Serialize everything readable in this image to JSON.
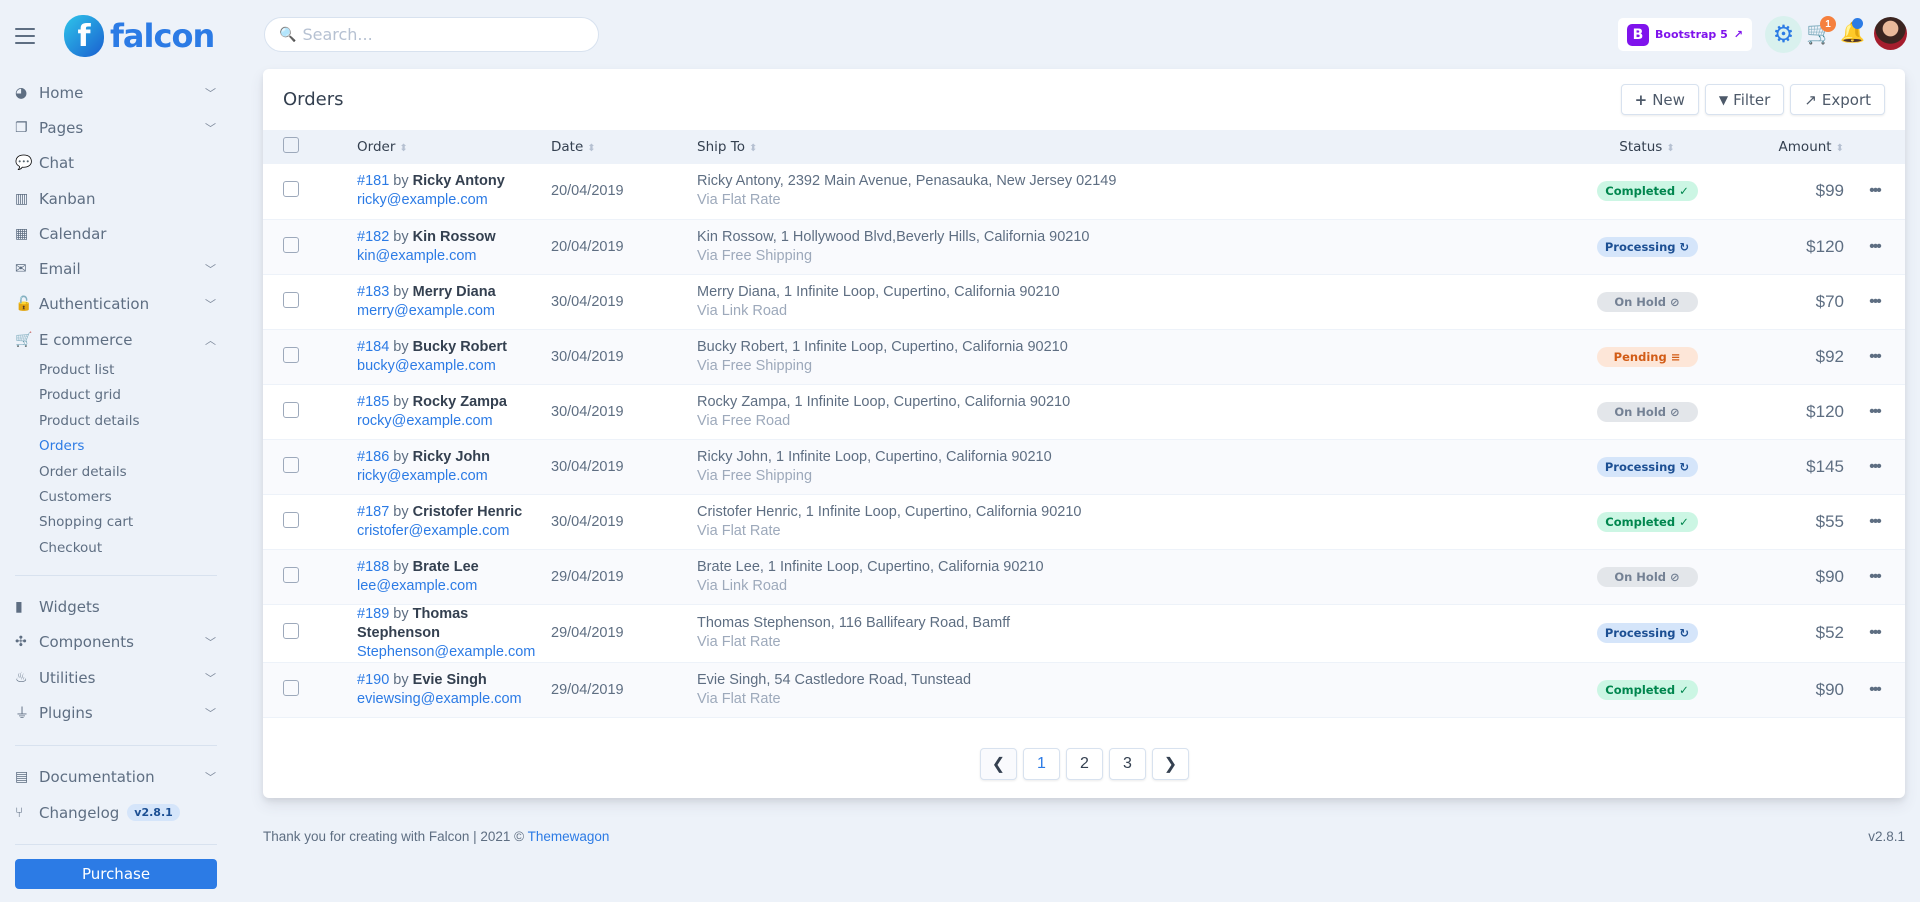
{
  "brand": {
    "name": "falcon",
    "mark": "f"
  },
  "search": {
    "placeholder": "Search..."
  },
  "topbar": {
    "bootstrap_label": "Bootstrap 5",
    "cart_count": "1"
  },
  "sidebar": {
    "items": [
      {
        "label": "Home",
        "icon": "pie-chart-icon",
        "chevron": true
      },
      {
        "label": "Pages",
        "icon": "copy-icon",
        "chevron": true
      },
      {
        "label": "Chat",
        "icon": "comments-icon",
        "chevron": false
      },
      {
        "label": "Kanban",
        "icon": "trello-icon",
        "chevron": false
      },
      {
        "label": "Calendar",
        "icon": "calendar-icon",
        "chevron": false
      },
      {
        "label": "Email",
        "icon": "envelope-open-icon",
        "chevron": true
      },
      {
        "label": "Authentication",
        "icon": "unlock-icon",
        "chevron": true
      },
      {
        "label": "E commerce",
        "icon": "cart-icon",
        "chevron": true,
        "expanded": true
      }
    ],
    "ecommerce_sub": [
      "Product list",
      "Product grid",
      "Product details",
      "Orders",
      "Order details",
      "Customers",
      "Shopping cart",
      "Checkout"
    ],
    "active_sub": "Orders",
    "items2": [
      {
        "label": "Widgets",
        "icon": "poll-icon",
        "chevron": false
      },
      {
        "label": "Components",
        "icon": "puzzle-icon",
        "chevron": true
      },
      {
        "label": "Utilities",
        "icon": "fire-icon",
        "chevron": true
      },
      {
        "label": "Plugins",
        "icon": "plug-icon",
        "chevron": true
      }
    ],
    "items3": [
      {
        "label": "Documentation",
        "icon": "book-icon",
        "chevron": true
      },
      {
        "label": "Changelog",
        "icon": "code-branch-icon",
        "chevron": false,
        "badge": "v2.8.1"
      }
    ],
    "purchase_label": "Purchase"
  },
  "orders": {
    "title": "Orders",
    "buttons": {
      "new": "New",
      "filter": "Filter",
      "export": "Export"
    },
    "columns": [
      "Order",
      "Date",
      "Ship To",
      "Status",
      "Amount"
    ],
    "rows": [
      {
        "id": "#181",
        "by": "by",
        "name": "Ricky Antony",
        "email": "ricky@example.com",
        "date": "20/04/2019",
        "address": "Ricky Antony, 2392 Main Avenue, Penasauka, New Jersey 02149",
        "shipping": "Via Flat Rate",
        "status": "Completed",
        "amount": "$99"
      },
      {
        "id": "#182",
        "by": "by",
        "name": "Kin Rossow",
        "email": "kin@example.com",
        "date": "20/04/2019",
        "address": "Kin Rossow, 1 Hollywood Blvd,Beverly Hills, California 90210",
        "shipping": "Via Free Shipping",
        "status": "Processing",
        "amount": "$120"
      },
      {
        "id": "#183",
        "by": "by",
        "name": "Merry Diana",
        "email": "merry@example.com",
        "date": "30/04/2019",
        "address": "Merry Diana, 1 Infinite Loop, Cupertino, California 90210",
        "shipping": "Via Link Road",
        "status": "On Hold",
        "amount": "$70"
      },
      {
        "id": "#184",
        "by": "by",
        "name": "Bucky Robert",
        "email": "bucky@example.com",
        "date": "30/04/2019",
        "address": "Bucky Robert, 1 Infinite Loop, Cupertino, California 90210",
        "shipping": "Via Free Shipping",
        "status": "Pending",
        "amount": "$92"
      },
      {
        "id": "#185",
        "by": "by",
        "name": "Rocky Zampa",
        "email": "rocky@example.com",
        "date": "30/04/2019",
        "address": "Rocky Zampa, 1 Infinite Loop, Cupertino, California 90210",
        "shipping": "Via Free Road",
        "status": "On Hold",
        "amount": "$120"
      },
      {
        "id": "#186",
        "by": "by",
        "name": "Ricky John",
        "email": "ricky@example.com",
        "date": "30/04/2019",
        "address": "Ricky John, 1 Infinite Loop, Cupertino, California 90210",
        "shipping": "Via Free Shipping",
        "status": "Processing",
        "amount": "$145"
      },
      {
        "id": "#187",
        "by": "by",
        "name": "Cristofer Henric",
        "email": "cristofer@example.com",
        "date": "30/04/2019",
        "address": "Cristofer Henric, 1 Infinite Loop, Cupertino, California 90210",
        "shipping": "Via Flat Rate",
        "status": "Completed",
        "amount": "$55"
      },
      {
        "id": "#188",
        "by": "by",
        "name": "Brate Lee",
        "email": "lee@example.com",
        "date": "29/04/2019",
        "address": "Brate Lee, 1 Infinite Loop, Cupertino, California 90210",
        "shipping": "Via Link Road",
        "status": "On Hold",
        "amount": "$90"
      },
      {
        "id": "#189",
        "by": "by",
        "name": "Thomas Stephenson",
        "email": "Stephenson@example.com",
        "date": "29/04/2019",
        "address": "Thomas Stephenson, 116 Ballifeary Road, Bamff",
        "shipping": "Via Flat Rate",
        "status": "Processing",
        "amount": "$52"
      },
      {
        "id": "#190",
        "by": "by",
        "name": "Evie Singh",
        "email": "eviewsing@example.com",
        "date": "29/04/2019",
        "address": "Evie Singh, 54 Castledore Road, Tunstead",
        "shipping": "Via Flat Rate",
        "status": "Completed",
        "amount": "$90"
      }
    ],
    "status_styles": {
      "Completed": {
        "bg": "#ccf6e4",
        "fg": "#00864e",
        "icon": "✓"
      },
      "Processing": {
        "bg": "#d5e5fa",
        "fg": "#1c4f93",
        "icon": "↻"
      },
      "On Hold": {
        "bg": "#e3e6ea",
        "fg": "#748194",
        "icon": "⊘"
      },
      "Pending": {
        "bg": "#fde6d8",
        "fg": "#d25c16",
        "icon": "≡"
      }
    },
    "pagination": {
      "pages": [
        "1",
        "2",
        "3"
      ],
      "current": "1"
    }
  },
  "footer": {
    "text": "Thank you for creating with Falcon | 2021 © ",
    "link": "Themewagon",
    "version": "v2.8.1"
  }
}
